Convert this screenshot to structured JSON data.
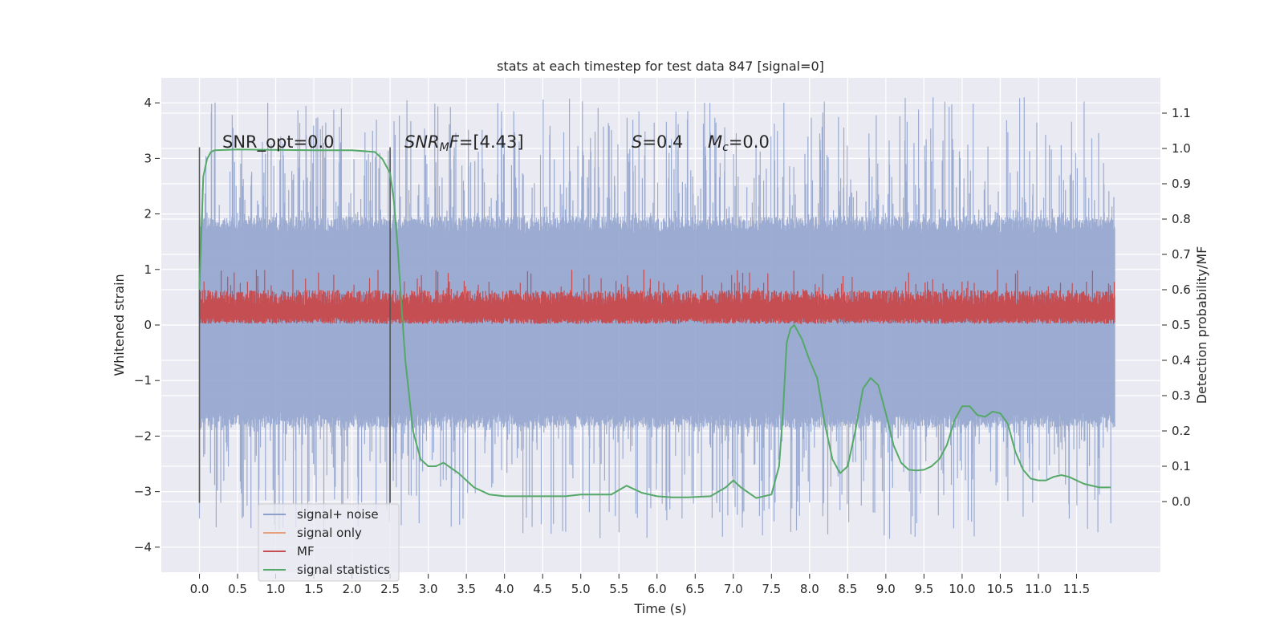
{
  "chart_data": {
    "type": "line",
    "title": "stats at each timestep for test data 847 [signal=0]",
    "xlabel": "Time (s)",
    "ylabel_left": "Whitened strain",
    "ylabel_right": "Detection probability/MF",
    "xlim": [
      -0.5,
      12.6
    ],
    "ylim_left": [
      -4.45,
      4.45
    ],
    "ylim_right": [
      -0.2,
      1.2
    ],
    "x_ticks": [
      "0.0",
      "0.5",
      "1.0",
      "1.5",
      "2.0",
      "2.5",
      "3.0",
      "3.5",
      "4.0",
      "4.5",
      "5.0",
      "5.5",
      "6.0",
      "6.5",
      "7.0",
      "7.5",
      "8.0",
      "8.5",
      "9.0",
      "9.5",
      "10.0",
      "10.5",
      "11.0",
      "11.5"
    ],
    "y_left_ticks": [
      "4",
      "3",
      "2",
      "1",
      "0",
      "−1",
      "−2",
      "−3",
      "−4"
    ],
    "y_right_ticks": [
      "1.1",
      "1.0",
      "0.9",
      "0.8",
      "0.7",
      "0.6",
      "0.5",
      "0.4",
      "0.3",
      "0.2",
      "0.1",
      "0.0"
    ],
    "annotations": {
      "snr_opt": "SNR_opt=0.0",
      "snr_mf_sym": "SNR",
      "snr_mf_sub": "M",
      "snr_mf_tail": "F",
      "snr_mf_val": "=[4.43]",
      "s_sym": "S",
      "s_val": "=0.4",
      "mc_sym": "M",
      "mc_sub": "c",
      "mc_val": "=0.0"
    },
    "vertical_markers_s": [
      0.0,
      2.5
    ],
    "vertical_marker_range_left": [
      -3.2,
      3.2
    ],
    "legend": {
      "location": "lower-left",
      "entries": [
        {
          "label": "signal+ noise",
          "color": "#8da0cb"
        },
        {
          "label": "signal only",
          "color": "#e8a07f"
        },
        {
          "label": "MF",
          "color": "#c44e52"
        },
        {
          "label": "signal statistics",
          "color": "#55a868"
        }
      ]
    },
    "series": [
      {
        "name": "signal+ noise",
        "axis": "left",
        "color": "#8da0cb",
        "style": "dense-noise",
        "x_range": [
          0.0,
          12.0
        ],
        "core_band": [
          -1.85,
          1.95
        ],
        "peak_range": [
          -3.85,
          4.1
        ],
        "samples": 2400
      },
      {
        "name": "MF",
        "axis": "left",
        "color": "#c44e52",
        "style": "dense-noise",
        "x_range": [
          0.0,
          12.0
        ],
        "band": [
          0.0,
          0.65
        ],
        "peak_range": [
          0.0,
          1.0
        ],
        "samples": 2400
      },
      {
        "name": "signal statistics",
        "axis": "right",
        "color": "#55a868",
        "x": [
          0.0,
          0.05,
          0.1,
          0.15,
          0.2,
          0.5,
          1.0,
          1.5,
          2.0,
          2.3,
          2.4,
          2.5,
          2.55,
          2.6,
          2.65,
          2.7,
          2.75,
          2.8,
          2.9,
          3.0,
          3.1,
          3.2,
          3.4,
          3.6,
          3.8,
          4.0,
          4.4,
          4.8,
          5.0,
          5.2,
          5.4,
          5.6,
          5.8,
          6.0,
          6.2,
          6.4,
          6.7,
          6.9,
          7.0,
          7.1,
          7.3,
          7.5,
          7.6,
          7.65,
          7.7,
          7.75,
          7.8,
          7.9,
          8.0,
          8.1,
          8.2,
          8.3,
          8.4,
          8.5,
          8.6,
          8.7,
          8.8,
          8.9,
          9.0,
          9.1,
          9.2,
          9.3,
          9.4,
          9.5,
          9.6,
          9.7,
          9.8,
          9.9,
          10.0,
          10.1,
          10.2,
          10.3,
          10.4,
          10.5,
          10.6,
          10.7,
          10.8,
          10.9,
          11.0,
          11.1,
          11.2,
          11.3,
          11.4,
          11.5,
          11.6,
          11.8,
          11.95
        ],
        "y": [
          0.6,
          0.92,
          0.97,
          0.99,
          0.995,
          0.997,
          0.996,
          0.995,
          0.995,
          0.99,
          0.97,
          0.93,
          0.85,
          0.72,
          0.55,
          0.4,
          0.3,
          0.2,
          0.12,
          0.1,
          0.1,
          0.11,
          0.08,
          0.04,
          0.02,
          0.015,
          0.015,
          0.015,
          0.02,
          0.02,
          0.02,
          0.045,
          0.025,
          0.015,
          0.012,
          0.012,
          0.015,
          0.04,
          0.06,
          0.04,
          0.01,
          0.02,
          0.1,
          0.25,
          0.45,
          0.49,
          0.5,
          0.46,
          0.4,
          0.35,
          0.22,
          0.12,
          0.08,
          0.1,
          0.2,
          0.32,
          0.35,
          0.33,
          0.25,
          0.16,
          0.11,
          0.09,
          0.088,
          0.09,
          0.1,
          0.12,
          0.16,
          0.23,
          0.27,
          0.27,
          0.245,
          0.24,
          0.255,
          0.25,
          0.22,
          0.14,
          0.09,
          0.065,
          0.06,
          0.06,
          0.07,
          0.075,
          0.07,
          0.06,
          0.05,
          0.04,
          0.04
        ]
      }
    ]
  }
}
